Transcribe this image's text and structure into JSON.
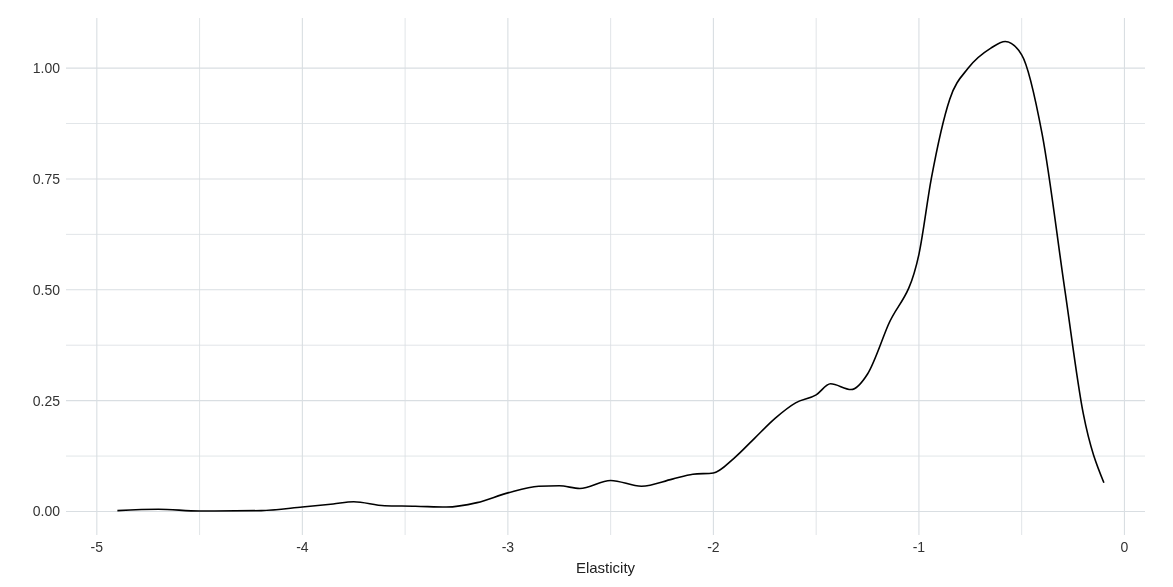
{
  "chart_data": {
    "type": "line",
    "xlabel": "Elasticity",
    "x": [
      -4.9,
      -4.7,
      -4.5,
      -4.2,
      -4.0,
      -3.85,
      -3.75,
      -3.6,
      -3.45,
      -3.3,
      -3.15,
      -3.0,
      -2.85,
      -2.75,
      -2.65,
      -2.5,
      -2.35,
      -2.2,
      -2.1,
      -2.0,
      -1.9,
      -1.8,
      -1.7,
      -1.6,
      -1.5,
      -1.43,
      -1.33,
      -1.25,
      -1.15,
      -1.0,
      -0.94,
      -0.85,
      -0.76,
      -0.65,
      -0.58,
      -0.5,
      -0.4,
      -0.29,
      -0.2,
      -0.1
    ],
    "series": [
      {
        "color": "#000000",
        "values": [
          0.002,
          0.005,
          0.001,
          0.002,
          0.01,
          0.017,
          0.022,
          0.013,
          0.012,
          0.01,
          0.02,
          0.042,
          0.057,
          0.058,
          0.052,
          0.07,
          0.057,
          0.073,
          0.084,
          0.087,
          0.12,
          0.165,
          0.21,
          0.245,
          0.263,
          0.288,
          0.275,
          0.31,
          0.42,
          0.58,
          0.75,
          0.93,
          1.0,
          1.045,
          1.06,
          1.03,
          0.85,
          0.5,
          0.22,
          0.065
        ]
      }
    ],
    "xlim": [
      -5.15,
      0.1
    ],
    "ylim": [
      -0.053,
      1.113
    ],
    "xticks": [
      -5,
      {
        "value": -4.5,
        "label": null
      },
      -4,
      {
        "value": -3.5,
        "label": null
      },
      -3,
      {
        "value": -2.5,
        "label": null
      },
      -2,
      {
        "value": -1.5,
        "label": null
      },
      -1,
      {
        "value": -0.5,
        "label": null
      },
      0
    ],
    "yticks": [
      {
        "value": 0,
        "label": "0.00"
      },
      {
        "value": 0.125,
        "label": null
      },
      {
        "value": 0.25,
        "label": "0.25"
      },
      {
        "value": 0.375,
        "label": null
      },
      {
        "value": 0.5,
        "label": "0.50"
      },
      {
        "value": 0.625,
        "label": null
      },
      {
        "value": 0.75,
        "label": "0.75"
      },
      {
        "value": 0.875,
        "label": null
      },
      {
        "value": 1,
        "label": "1.00"
      }
    ],
    "grid": true,
    "marker": "none",
    "line_style": "solid"
  }
}
